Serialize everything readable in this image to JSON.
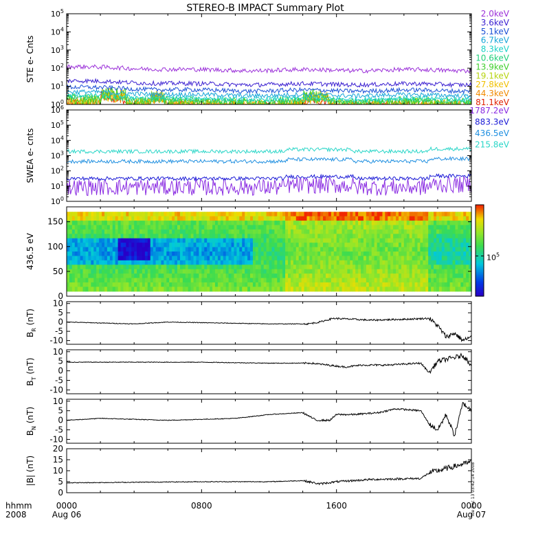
{
  "title": "STEREO-B IMPACT Summary Plot",
  "x_axis": {
    "label_top": "hhmm",
    "label_bottom": "2008",
    "ticks": [
      {
        "hhmm": "0000",
        "date": "Aug 06"
      },
      {
        "hhmm": "0800",
        "date": ""
      },
      {
        "hhmm": "1600",
        "date": ""
      },
      {
        "hhmm": "0000",
        "date": "Aug 07"
      }
    ]
  },
  "colorbar": {
    "tick_label": "10",
    "tick_exp": "5"
  },
  "footer_stamp": "Tue Dec 13 03:42:14 2008",
  "chart_data": [
    {
      "id": "ste",
      "type": "line",
      "ylabel": "STE e- Cnts",
      "yscale": "log",
      "ylim": [
        1,
        100000
      ],
      "ytick_exponents": [
        0,
        1,
        2,
        3,
        4,
        5
      ],
      "x_range_hours": [
        0,
        24
      ],
      "series": [
        {
          "name": "2.0keV",
          "color": "#9b30d9",
          "level": 120
        },
        {
          "name": "3.6keV",
          "color": "#3a1fd0",
          "level": 20
        },
        {
          "name": "5.1keV",
          "color": "#1a4fd6",
          "level": 9
        },
        {
          "name": "6.7keV",
          "color": "#17a6d8",
          "level": 5
        },
        {
          "name": "8.3keV",
          "color": "#19d2c6",
          "level": 3.2
        },
        {
          "name": "10.6keV",
          "color": "#20d07a",
          "level": 2.4
        },
        {
          "name": "13.9keV",
          "color": "#3fcf2c",
          "level": 1.8
        },
        {
          "name": "19.1keV",
          "color": "#b6d40f",
          "level": 1.5
        },
        {
          "name": "27.8keV",
          "color": "#f0c000",
          "level": 1.3
        },
        {
          "name": "44.3keV",
          "color": "#f08a00",
          "level": 1.2
        },
        {
          "name": "81.1keV",
          "color": "#e02000",
          "level": 1.1
        }
      ]
    },
    {
      "id": "swea",
      "type": "line",
      "ylabel": "SWEA e- cnts",
      "yscale": "log",
      "ylim": [
        1,
        1000000
      ],
      "ytick_exponents": [
        0,
        1,
        2,
        3,
        4,
        5,
        6
      ],
      "x_range_hours": [
        0,
        24
      ],
      "series": [
        {
          "name": "1787.2eV",
          "color": "#8a2be2",
          "level": 8
        },
        {
          "name": "883.3eV",
          "color": "#1a1ad6",
          "level": 30
        },
        {
          "name": "436.5eV",
          "color": "#1f8fe0",
          "level": 400
        },
        {
          "name": "215.8eV",
          "color": "#2ad6c8",
          "level": 1800
        }
      ]
    },
    {
      "id": "pad",
      "type": "heatmap",
      "ylabel": "436.5 eV",
      "ylim": [
        0,
        180
      ],
      "yticks": [
        0,
        50,
        100,
        150
      ],
      "x_range_hours": [
        0,
        24
      ],
      "value_scale": "log",
      "color_tick_value": 100000
    },
    {
      "id": "br",
      "type": "line",
      "ylabel": "B",
      "ylabel_sub": "R",
      "ylabel_unit": "(nT)",
      "ylim": [
        -12,
        11
      ],
      "yticks": [
        -10,
        -5,
        0,
        5,
        10
      ],
      "x_range_hours": [
        0,
        24
      ],
      "keyframes": [
        [
          0,
          0
        ],
        [
          4,
          -1
        ],
        [
          6,
          0
        ],
        [
          9,
          -0.5
        ],
        [
          12,
          -1
        ],
        [
          14.3,
          -1
        ],
        [
          15,
          0
        ],
        [
          15.8,
          2
        ],
        [
          17,
          1.5
        ],
        [
          18,
          1
        ],
        [
          20,
          1.5
        ],
        [
          21.5,
          2
        ],
        [
          22,
          -2
        ],
        [
          22.5,
          -8
        ],
        [
          23,
          -6
        ],
        [
          23.5,
          -10
        ],
        [
          24,
          -8
        ]
      ]
    },
    {
      "id": "bt",
      "type": "line",
      "ylabel": "B",
      "ylabel_sub": "T",
      "ylabel_unit": "(nT)",
      "ylim": [
        -12,
        11
      ],
      "yticks": [
        -10,
        -5,
        0,
        5,
        10
      ],
      "x_range_hours": [
        0,
        24
      ],
      "keyframes": [
        [
          0,
          4.5
        ],
        [
          8,
          4.5
        ],
        [
          12,
          4
        ],
        [
          14.5,
          4
        ],
        [
          15.5,
          3
        ],
        [
          16.5,
          2
        ],
        [
          17.5,
          3
        ],
        [
          19,
          3
        ],
        [
          21,
          4
        ],
        [
          21.5,
          -1
        ],
        [
          22,
          5
        ],
        [
          23,
          7
        ],
        [
          23.5,
          8
        ],
        [
          24,
          3
        ]
      ]
    },
    {
      "id": "bn",
      "type": "line",
      "ylabel": "B",
      "ylabel_sub": "N",
      "ylabel_unit": "(nT)",
      "ylim": [
        -12,
        11
      ],
      "yticks": [
        -10,
        -5,
        0,
        5,
        10
      ],
      "x_range_hours": [
        0,
        24
      ],
      "keyframes": [
        [
          0,
          0
        ],
        [
          2,
          1
        ],
        [
          6,
          0
        ],
        [
          10,
          1
        ],
        [
          12,
          3
        ],
        [
          14,
          4
        ],
        [
          14.8,
          0
        ],
        [
          15.6,
          0
        ],
        [
          16,
          3
        ],
        [
          17,
          3
        ],
        [
          18.5,
          4
        ],
        [
          19.5,
          6
        ],
        [
          21,
          5
        ],
        [
          21.5,
          -2
        ],
        [
          22,
          -5
        ],
        [
          22.5,
          3
        ],
        [
          23,
          -8
        ],
        [
          23.5,
          9
        ],
        [
          24,
          5
        ]
      ]
    },
    {
      "id": "bmag",
      "type": "line",
      "ylabel": "|B| (nT)",
      "ylim": [
        0,
        20
      ],
      "yticks": [
        0,
        5,
        10,
        15,
        20
      ],
      "x_range_hours": [
        0,
        24
      ],
      "keyframes": [
        [
          0,
          4.5
        ],
        [
          8,
          5
        ],
        [
          12,
          5
        ],
        [
          14,
          5.5
        ],
        [
          15,
          4
        ],
        [
          16,
          5
        ],
        [
          18,
          6
        ],
        [
          21,
          6.5
        ],
        [
          21.5,
          9
        ],
        [
          22.5,
          11
        ],
        [
          23.5,
          13
        ],
        [
          24,
          14
        ]
      ]
    }
  ]
}
